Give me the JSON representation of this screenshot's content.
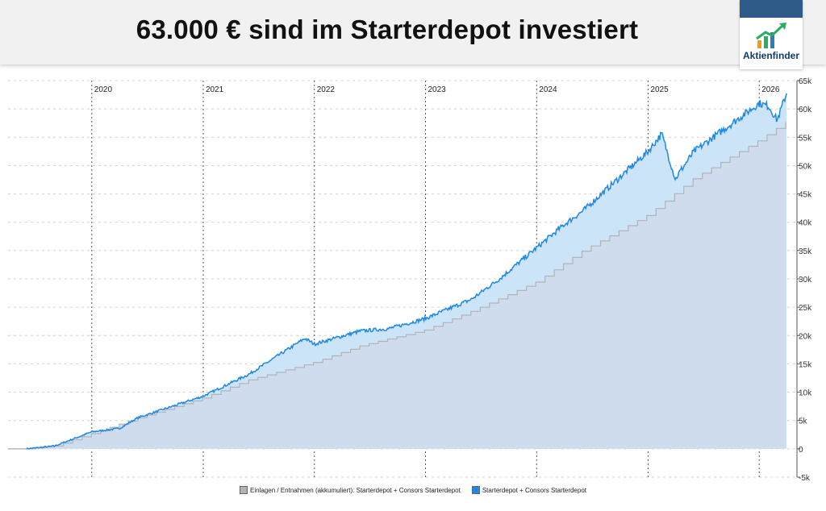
{
  "header": {
    "title": "63.000 € sind im Starterdepot investiert",
    "logo_text": "Aktienfinder",
    "logo_icon": "rising-arrow-chart-icon"
  },
  "chart_data": {
    "type": "area",
    "x_axis": {
      "type": "date",
      "tick_labels": [
        "2020",
        "2021",
        "2022",
        "2023",
        "2024",
        "2025",
        "2026"
      ]
    },
    "y_axis": {
      "range": [
        -5000,
        65000
      ],
      "tick_labels": [
        "-5k",
        "0",
        "5k",
        "10k",
        "15k",
        "20k",
        "25k",
        "30k",
        "35k",
        "40k",
        "45k",
        "50k",
        "55k",
        "60k",
        "65k"
      ],
      "position": "right"
    },
    "grid": true,
    "legend_placement": "bottom",
    "series": [
      {
        "name": "Einlagen / Entnahmen (akkumuliert): Starterdepot + Consors Starterdepot",
        "style": "step-area",
        "line_color": "#b3b3b3",
        "fill_color": "#cfdcee",
        "x": [
          "2019-06-01",
          "2019-09-01",
          "2020-01-01",
          "2020-06-01",
          "2021-01-01",
          "2021-06-01",
          "2022-01-01",
          "2022-06-01",
          "2023-01-01",
          "2023-06-01",
          "2024-01-01",
          "2024-06-01",
          "2025-01-01",
          "2025-06-01",
          "2026-01-01",
          "2026-04-01"
        ],
        "values": [
          0,
          500,
          2700,
          5500,
          9000,
          12200,
          15300,
          18200,
          21000,
          24300,
          29500,
          35000,
          41300,
          47800,
          54500,
          57800
        ]
      },
      {
        "name": "Starterdepot + Consors Starterdepot",
        "style": "line-area",
        "line_color": "#1e88e5",
        "fill_color": "#cce4f7",
        "x": [
          "2019-06-01",
          "2019-09-01",
          "2020-01-01",
          "2020-04-01",
          "2020-06-01",
          "2021-01-01",
          "2021-06-01",
          "2021-12-01",
          "2022-01-01",
          "2022-06-01",
          "2022-09-01",
          "2023-01-01",
          "2023-06-01",
          "2023-09-01",
          "2024-01-01",
          "2024-04-01",
          "2024-06-01",
          "2025-01-01",
          "2025-02-15",
          "2025-04-01",
          "2025-04-10",
          "2025-06-01",
          "2026-01-01",
          "2026-02-01",
          "2026-03-01",
          "2026-04-01"
        ],
        "values": [
          0,
          500,
          3000,
          3600,
          5500,
          9300,
          13200,
          19500,
          18500,
          20800,
          21200,
          23000,
          26400,
          30000,
          35500,
          39600,
          42000,
          52500,
          55600,
          47500,
          48500,
          52500,
          61000,
          60500,
          58000,
          62800
        ]
      }
    ]
  }
}
